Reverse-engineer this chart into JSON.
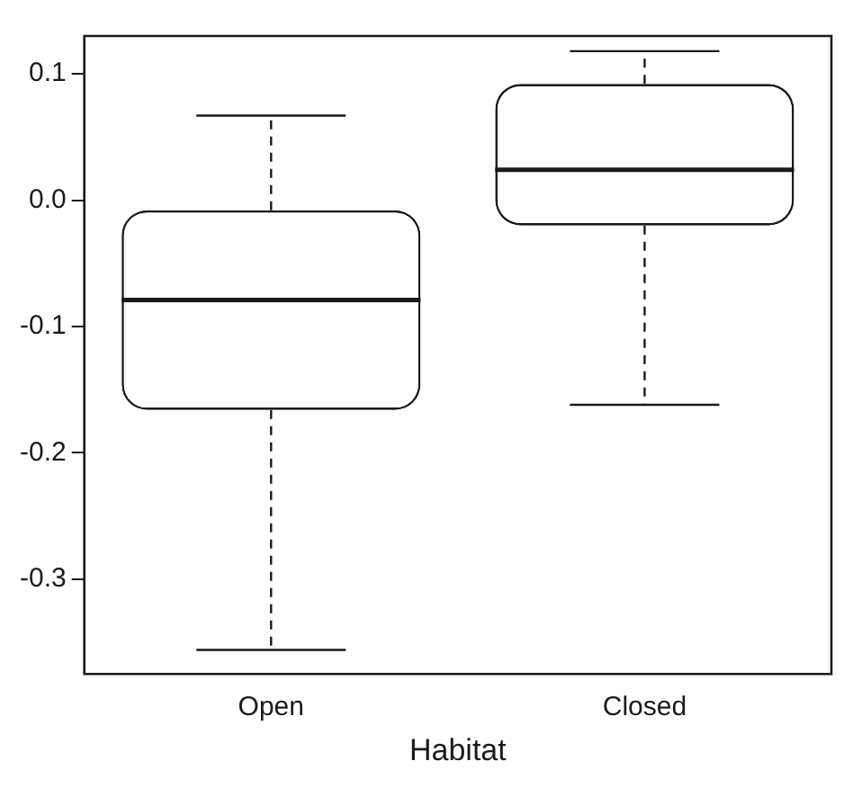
{
  "chart_data": {
    "type": "box",
    "xlabel": "Habitat",
    "categories": [
      "Open",
      "Closed"
    ],
    "boxes": [
      {
        "low": -0.356,
        "q1": -0.166,
        "median": -0.079,
        "q3": -0.008,
        "high": 0.067
      },
      {
        "low": -0.162,
        "q1": -0.02,
        "median": 0.024,
        "q3": 0.092,
        "high": 0.118
      }
    ],
    "ylim": [
      -0.375,
      0.13
    ],
    "yticks": [
      {
        "value": -0.3,
        "label": "-0.3"
      },
      {
        "value": -0.2,
        "label": "-0.2"
      },
      {
        "value": -0.1,
        "label": "-0.1"
      },
      {
        "value": 0,
        "label": "0.0"
      },
      {
        "value": 0.1,
        "label": "0.1"
      }
    ]
  }
}
